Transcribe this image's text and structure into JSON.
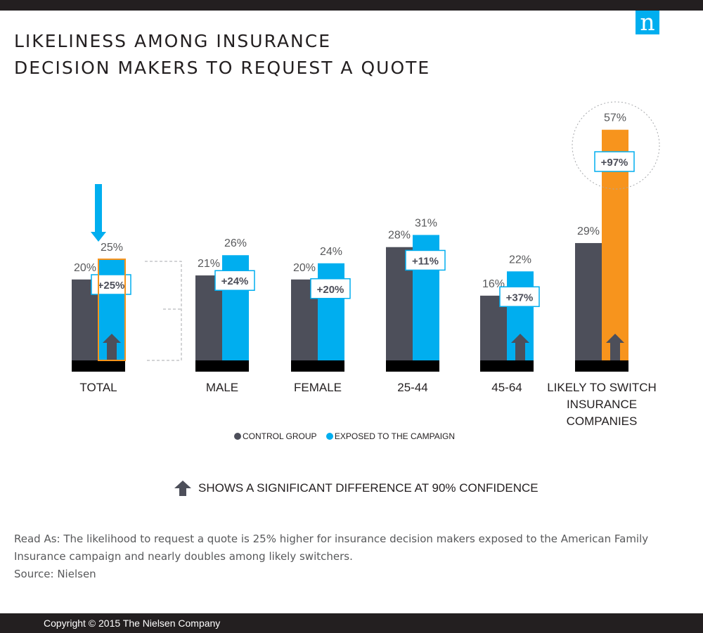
{
  "brand": {
    "logo_letter": "n"
  },
  "title": {
    "line1": "LIKELINESS AMONG INSURANCE",
    "line2": "DECISION MAKERS TO REQUEST A QUOTE"
  },
  "chart_data": {
    "type": "bar",
    "title": "LIKELINESS AMONG INSURANCE DECISION MAKERS TO REQUEST A QUOTE",
    "categories": [
      [
        "TOTAL"
      ],
      [
        "MALE"
      ],
      [
        "FEMALE"
      ],
      [
        "25-44"
      ],
      [
        "45-64"
      ],
      [
        "LIKELY TO SWITCH",
        "INSURANCE",
        "COMPANIES"
      ]
    ],
    "series": [
      {
        "name": "CONTROL GROUP",
        "values": [
          20,
          21,
          20,
          28,
          16,
          29
        ],
        "labels": [
          "20%",
          "21%",
          "20%",
          "28%",
          "16%",
          "29%"
        ]
      },
      {
        "name": "EXPOSED TO THE CAMPAIGN",
        "values": [
          25,
          26,
          24,
          31,
          22,
          57
        ],
        "labels": [
          "25%",
          "26%",
          "24%",
          "31%",
          "22%",
          "57%"
        ]
      }
    ],
    "lift_labels": [
      "+25%",
      "+24%",
      "+20%",
      "+11%",
      "+37%",
      "+97%"
    ],
    "significant": [
      true,
      false,
      false,
      false,
      true,
      true
    ],
    "ylim": [
      0,
      57
    ],
    "xlabel": "",
    "ylabel": "",
    "colors": {
      "control": "#4d4f5a",
      "exposed": "#00aeef",
      "highlight": "#f7941d",
      "base": "#000000",
      "label_text": "#58595b",
      "arrow": "#4d4f5a"
    }
  },
  "legend": {
    "control_label": "CONTROL GROUP",
    "exposed_label": "EXPOSED TO THE CAMPAIGN"
  },
  "note": {
    "text": "SHOWS A SIGNIFICANT DIFFERENCE AT 90% CONFIDENCE",
    "icon": "up-arrow-icon"
  },
  "read_as": {
    "line1": "Read As: The likelihood to request a quote is 25% higher for insurance decision makers exposed to the American Family",
    "line2": "Insurance campaign and nearly doubles among likely switchers.",
    "line3": "Source: Nielsen"
  },
  "footer": {
    "copyright": "Copyright © 2015 The Nielsen Company"
  }
}
